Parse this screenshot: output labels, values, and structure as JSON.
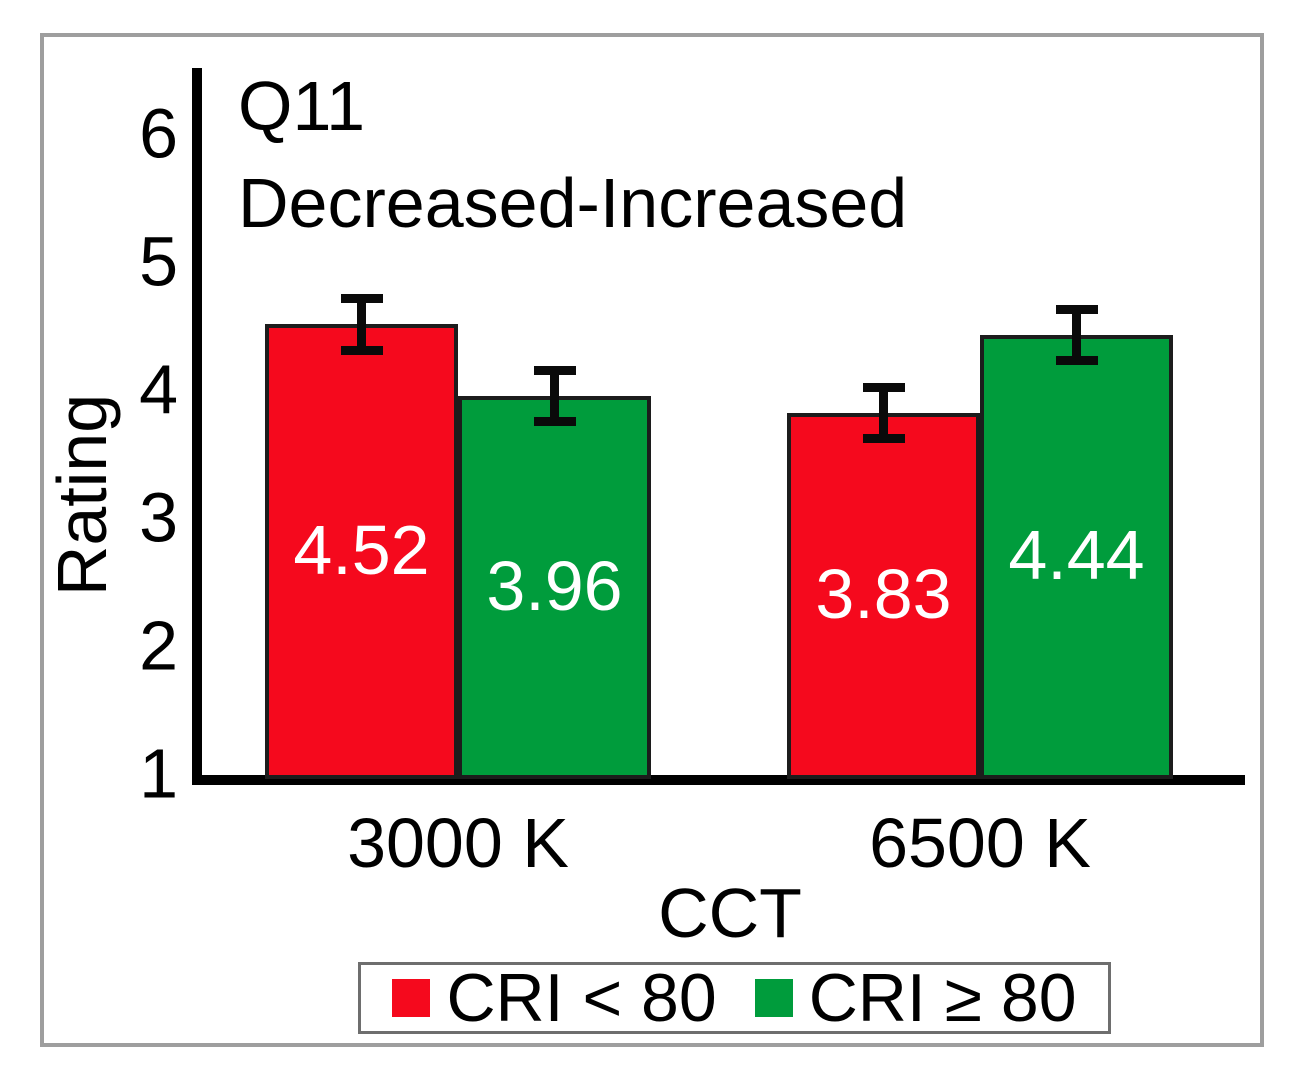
{
  "chart_data": {
    "type": "bar",
    "title_lines": [
      "Q11",
      "Decreased-Increased"
    ],
    "ylabel": "Rating",
    "xlabel": "CCT",
    "categories": [
      "3000 K",
      "6500 K"
    ],
    "series": [
      {
        "name": "CRI < 80",
        "color": "#f5091d",
        "values": [
          4.52,
          3.83
        ],
        "errors": [
          0.2,
          0.2
        ]
      },
      {
        "name": "CRI ≥ 80",
        "color": "#009c3c",
        "values": [
          3.96,
          4.44
        ],
        "errors": [
          0.2,
          0.2
        ]
      }
    ],
    "bar_value_labels": [
      [
        "4.52",
        "3.83"
      ],
      [
        "3.96",
        "4.44"
      ]
    ],
    "ylim": [
      1,
      6
    ],
    "yticks": [
      1,
      2,
      3,
      4,
      5,
      6
    ],
    "grid": false,
    "legend_position": "bottom",
    "colors": {
      "bar_border": "#1c1c1c",
      "axis": "#000000",
      "error_bar": "#0a0a0a",
      "value_label": "#ffffff",
      "frame_border": "#9e9e9e",
      "legend_border": "#6e6e6e"
    }
  }
}
